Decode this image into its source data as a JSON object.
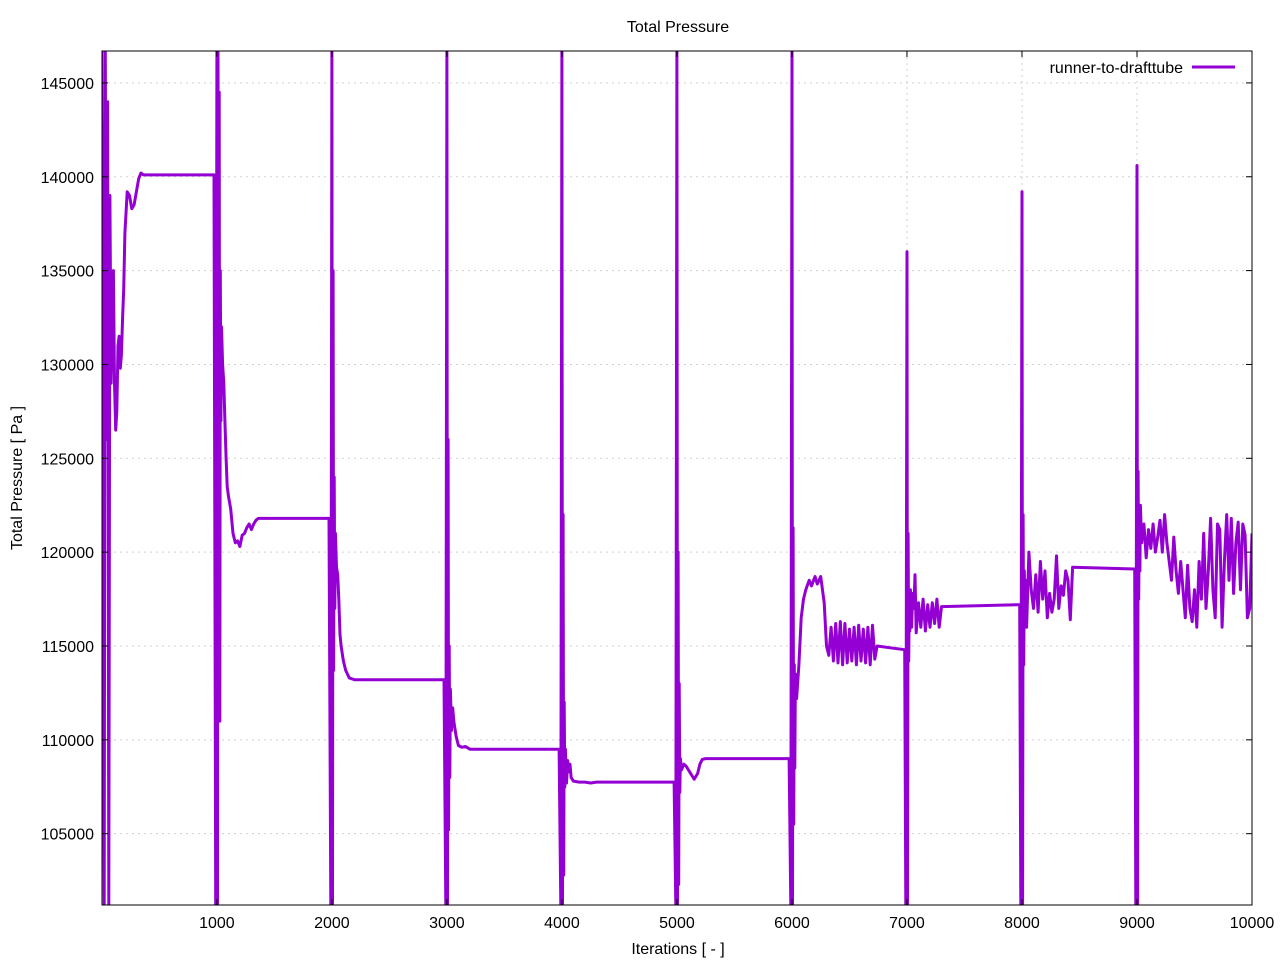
{
  "chart_data": {
    "type": "line",
    "title": "Total Pressure",
    "xlabel": "Iterations [ - ]",
    "ylabel": "Total Pressure [ Pa ]",
    "xlim": [
      1,
      10000
    ],
    "ylim": [
      101200,
      146700
    ],
    "x_ticks": [
      1000,
      2000,
      3000,
      4000,
      5000,
      6000,
      7000,
      8000,
      9000,
      10000
    ],
    "y_ticks": [
      105000,
      110000,
      115000,
      120000,
      125000,
      130000,
      135000,
      140000,
      145000
    ],
    "grid": true,
    "legend_position": "top-right",
    "series_color": "#9400d3",
    "series": [
      {
        "name": "runner-to-drafttube",
        "x": [
          1,
          20,
          30,
          40,
          50,
          60,
          70,
          80,
          100,
          110,
          120,
          130,
          140,
          150,
          160,
          170,
          180,
          190,
          200,
          220,
          240,
          260,
          280,
          300,
          320,
          340,
          360,
          380,
          400,
          420,
          440,
          460,
          500,
          600,
          700,
          800,
          900,
          975,
          990,
          1000,
          1005,
          1010,
          1015,
          1020,
          1025,
          1030,
          1035,
          1040,
          1050,
          1060,
          1070,
          1080,
          1090,
          1100,
          1120,
          1140,
          1160,
          1180,
          1200,
          1220,
          1240,
          1260,
          1280,
          1300,
          1320,
          1340,
          1360,
          1380,
          1400,
          1420,
          1440,
          1460,
          1500,
          1600,
          1700,
          1800,
          1900,
          1975,
          1990,
          2000,
          2005,
          2010,
          2015,
          2020,
          2025,
          2030,
          2040,
          2050,
          2060,
          2070,
          2080,
          2100,
          2120,
          2150,
          2200,
          2250,
          2300,
          2500,
          2700,
          2900,
          2975,
          2990,
          3000,
          3005,
          3010,
          3015,
          3020,
          3025,
          3030,
          3040,
          3050,
          3060,
          3080,
          3100,
          3130,
          3160,
          3200,
          3250,
          3300,
          3500,
          3700,
          3900,
          3975,
          3990,
          4000,
          4005,
          4010,
          4015,
          4020,
          4025,
          4030,
          4040,
          4050,
          4060,
          4070,
          4080,
          4100,
          4150,
          4200,
          4250,
          4300,
          4500,
          4700,
          4900,
          4975,
          4990,
          5000,
          5005,
          5010,
          5015,
          5020,
          5025,
          5030,
          5040,
          5060,
          5080,
          5100,
          5150,
          5180,
          5200,
          5220,
          5250,
          5280,
          5300,
          5500,
          5700,
          5900,
          5975,
          5990,
          6000,
          6005,
          6010,
          6015,
          6020,
          6025,
          6030,
          6040,
          6060,
          6080,
          6100,
          6120,
          6150,
          6170,
          6200,
          6220,
          6250,
          6280,
          6300,
          6320,
          6340,
          6360,
          6380,
          6400,
          6420,
          6440,
          6460,
          6480,
          6500,
          6520,
          6540,
          6560,
          6580,
          6600,
          6620,
          6640,
          6660,
          6680,
          6700,
          6720,
          6740,
          6980,
          6990,
          7000,
          7005,
          7010,
          7015,
          7020,
          7025,
          7030,
          7040,
          7050,
          7060,
          7070,
          7080,
          7100,
          7120,
          7140,
          7160,
          7180,
          7200,
          7220,
          7240,
          7260,
          7280,
          7300,
          7980,
          7990,
          8000,
          8005,
          8010,
          8015,
          8020,
          8025,
          8030,
          8040,
          8060,
          8080,
          8100,
          8120,
          8140,
          8160,
          8180,
          8200,
          8220,
          8240,
          8260,
          8280,
          8300,
          8320,
          8340,
          8360,
          8380,
          8400,
          8420,
          8440,
          8980,
          8990,
          9000,
          9005,
          9010,
          9015,
          9020,
          9025,
          9030,
          9040,
          9060,
          9080,
          9100,
          9120,
          9140,
          9160,
          9180,
          9200,
          9220,
          9240,
          9260,
          9280,
          9300,
          9320,
          9340,
          9360,
          9380,
          9400,
          9420,
          9440,
          9460,
          9480,
          9500,
          9520,
          9540,
          9560,
          9580,
          9600,
          9620,
          9640,
          9660,
          9680,
          9700,
          9720,
          9740,
          9760,
          9780,
          9800,
          9820,
          9840,
          9860,
          9880,
          9900,
          9920,
          9940,
          9960,
          9980,
          10000
        ],
        "values": [
          146700,
          101200,
          146700,
          126000,
          144000,
          101200,
          139000,
          129000,
          135000,
          129000,
          126500,
          127500,
          131000,
          131500,
          129800,
          130500,
          132500,
          134000,
          137000,
          139200,
          139000,
          138300,
          138500,
          139200,
          139900,
          140200,
          140100,
          140100,
          140100,
          140100,
          140100,
          140100,
          140100,
          140100,
          140100,
          140100,
          140100,
          140100,
          101200,
          146700,
          101200,
          146700,
          128000,
          144500,
          111000,
          135000,
          127000,
          132000,
          130000,
          129000,
          127000,
          125000,
          123500,
          123000,
          122300,
          121000,
          120500,
          120600,
          120300,
          120900,
          121000,
          121300,
          121500,
          121200,
          121500,
          121700,
          121800,
          121800,
          121800,
          121800,
          121800,
          121800,
          121800,
          121800,
          121800,
          121800,
          121800,
          121800,
          101200,
          146700,
          101200,
          135000,
          113700,
          124000,
          117000,
          121000,
          119200,
          118800,
          117500,
          115600,
          115000,
          114200,
          113700,
          113300,
          113200,
          113200,
          113200,
          113200,
          113200,
          113200,
          113200,
          101200,
          146700,
          101200,
          126000,
          105200,
          115000,
          108000,
          112700,
          110500,
          111700,
          111000,
          110200,
          109700,
          109600,
          109650,
          109500,
          109500,
          109500,
          109500,
          109500,
          109500,
          109500,
          101200,
          146700,
          101200,
          122000,
          102800,
          112000,
          107500,
          109500,
          107700,
          108900,
          108300,
          108700,
          108000,
          107800,
          107750,
          107750,
          107700,
          107750,
          107750,
          107750,
          107750,
          107750,
          101200,
          146700,
          101200,
          120000,
          102300,
          113000,
          107200,
          109000,
          108400,
          108700,
          108600,
          108400,
          107900,
          108200,
          108700,
          108950,
          109000,
          109000,
          109000,
          109000,
          109000,
          109000,
          109000,
          101200,
          146700,
          101200,
          121300,
          105500,
          114000,
          108500,
          113500,
          112200,
          114000,
          116500,
          117500,
          118000,
          118500,
          118200,
          118700,
          118300,
          118700,
          117300,
          115000,
          114500,
          116000,
          114200,
          116200,
          114100,
          116300,
          114000,
          116200,
          114100,
          115900,
          114200,
          116000,
          114000,
          116100,
          114200,
          115900,
          114100,
          116000,
          114000,
          116100,
          114300,
          115000,
          114800,
          101200,
          136000,
          101200,
          121000,
          114200,
          117500,
          115800,
          118000,
          116000,
          117800,
          117000,
          118800,
          115700,
          117300,
          116000,
          117500,
          115800,
          117200,
          116000,
          117300,
          116200,
          117500,
          116000,
          117100,
          117200,
          101200,
          139200,
          101200,
          122000,
          114000,
          119000,
          117000,
          118500,
          116000,
          120000,
          118000,
          117000,
          118800,
          116800,
          119500,
          117500,
          119000,
          116500,
          117800,
          116800,
          117500,
          119800,
          117000,
          118200,
          117700,
          119000,
          118500,
          116400,
          119200,
          119100,
          101200,
          140600,
          101200,
          124300,
          117500,
          122000,
          119000,
          122500,
          120500,
          121500,
          119700,
          121200,
          120200,
          121500,
          120000,
          120800,
          121700,
          120000,
          122000,
          120500,
          119500,
          118500,
          120800,
          119000,
          117800,
          119500,
          118000,
          116500,
          119300,
          117000,
          116300,
          118000,
          116000,
          119500,
          117500,
          121000,
          117000,
          119000,
          121800,
          118000,
          116500,
          121500,
          121200,
          116000,
          119500,
          122000,
          118500,
          121800,
          117800,
          120500,
          121600,
          118000,
          121500,
          120900,
          116500,
          117000,
          121000
        ]
      }
    ]
  }
}
